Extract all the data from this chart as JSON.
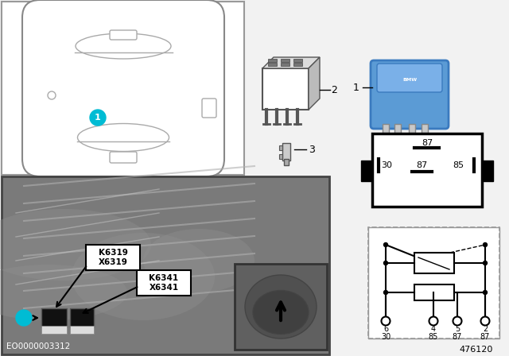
{
  "bg_color": "#f2f2f2",
  "white": "#ffffff",
  "black": "#000000",
  "gray_photo": "#7a7a7a",
  "gray_light": "#cccccc",
  "gray_medium": "#888888",
  "cyan_label": "#00bcd4",
  "blue_relay": "#5b9bd5",
  "title_number": "476120",
  "doc_number": "EO0000003312",
  "item1": "1",
  "item2": "2",
  "item3": "3",
  "pin_labels_top_box": [
    "87",
    "30",
    "87",
    "85"
  ],
  "circuit_pins_top": [
    "6",
    "4",
    "5",
    "2"
  ],
  "circuit_pins_bot": [
    "30",
    "85",
    "87",
    "87"
  ],
  "component_labels_1": [
    "K6319",
    "X6319"
  ],
  "component_labels_2": [
    "K6341",
    "X6341"
  ]
}
